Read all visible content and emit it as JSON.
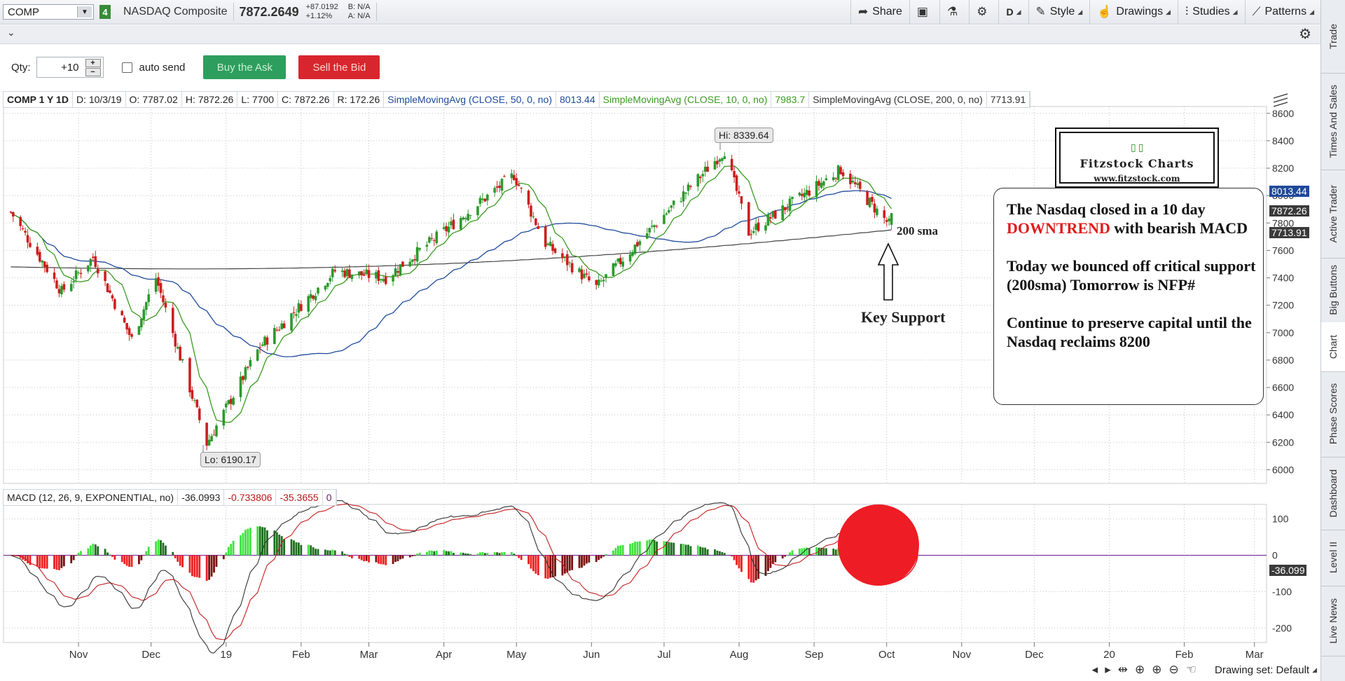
{
  "toolbar": {
    "symbol": "COMP",
    "link_badge": "4",
    "name": "NASDAQ Composite",
    "price": "7872.2649",
    "change_abs": "+87.0192",
    "change_pct": "+1.12%",
    "bid": "B: N/A",
    "ask": "A: N/A",
    "share_label": "Share",
    "timeframe_label": "D",
    "style_label": "Style",
    "drawings_label": "Drawings",
    "studies_label": "Studies",
    "patterns_label": "Patterns"
  },
  "order": {
    "qty_label": "Qty:",
    "qty_value": "+10",
    "auto_send_label": "auto send",
    "buy_label": "Buy the Ask",
    "sell_label": "Sell the Bid"
  },
  "study_header": {
    "symbol_period": "COMP 1 Y 1D",
    "date": "D: 10/3/19",
    "open": "O: 7787.02",
    "high": "H: 7872.26",
    "low": "L: 7700",
    "close": "C: 7872.26",
    "range": "R: 172.26",
    "sma50_label": "SimpleMovingAvg (CLOSE, 50, 0, no)",
    "sma50_value": "8013.44",
    "sma10_label": "SimpleMovingAvg (CLOSE, 10, 0, no)",
    "sma10_value": "7983.7",
    "sma200_label": "SimpleMovingAvg (CLOSE, 200, 0, no)",
    "sma200_value": "7713.91"
  },
  "macd_header": {
    "label": "MACD (12, 26, 9, EXPONENTIAL, no)",
    "value": "-36.0993",
    "avg": "-0.733806",
    "diff": "-35.3655",
    "zero": "0"
  },
  "annotations": {
    "hi_label": "Hi: 8339.64",
    "lo_label": "Lo: 6190.17",
    "sma_tag": "200 sma",
    "key_support": "Key Support",
    "logo_title": "Fitzstock Charts",
    "logo_url": "www.fitzstock.com",
    "note_line1_pre": "The Nasdaq closed in a 10 day",
    "note_line1_red": "DOWNTREND",
    "note_line1_post": " with bearish MACD",
    "note_line2": "Today we bounced off critical support (200sma) Tomorrow is NFP#",
    "note_line3": "Continue to preserve capital until the Nasdaq reclaims 8200"
  },
  "price_tags": {
    "sma50": "8013.44",
    "last": "7872.26",
    "sma200": "7713.91",
    "macd": "-36.099"
  },
  "colors": {
    "up": "#2b9a2b",
    "down": "#cc1f1f",
    "sma50": "#1f4a9a",
    "sma10": "#3b9a22",
    "sma200": "#444444",
    "highlight": "#ee1c25"
  },
  "side_tabs": [
    "Trade",
    "Times And Sales",
    "Active Trader",
    "Big Buttons",
    "Chart",
    "Phase Scores",
    "Dashboard",
    "Level II",
    "Live News"
  ],
  "bottom": {
    "drawing_set": "Drawing set: Default"
  },
  "chart_data": {
    "type": "candlestick",
    "symbol": "COMP",
    "period": "1 Y 1D",
    "y_ticks": [
      8600,
      8400,
      8200,
      8000,
      7800,
      7600,
      7400,
      7200,
      7000,
      6800,
      6600,
      6400,
      6200,
      6000
    ],
    "ylim": [
      5900,
      8650
    ],
    "x_ticks": [
      "Nov",
      "Dec",
      "19",
      "Feb",
      "Mar",
      "Apr",
      "May",
      "Jun",
      "Jul",
      "Aug",
      "Sep",
      "Oct",
      "Nov",
      "Dec",
      "20",
      "Feb",
      "Mar"
    ],
    "close_path_monthly": [
      {
        "date": "2018-10-04",
        "close": 7880
      },
      {
        "date": "2018-10-25",
        "close": 7300
      },
      {
        "date": "2018-11-07",
        "close": 7550
      },
      {
        "date": "2018-11-23",
        "close": 6950
      },
      {
        "date": "2018-12-03",
        "close": 7400
      },
      {
        "date": "2018-12-24",
        "close": 6190
      },
      {
        "date": "2019-01-15",
        "close": 6900
      },
      {
        "date": "2019-02-15",
        "close": 7450
      },
      {
        "date": "2019-03-08",
        "close": 7400
      },
      {
        "date": "2019-04-30",
        "close": 8150
      },
      {
        "date": "2019-05-13",
        "close": 7650
      },
      {
        "date": "2019-06-03",
        "close": 7330
      },
      {
        "date": "2019-07-26",
        "close": 8330
      },
      {
        "date": "2019-08-05",
        "close": 7730
      },
      {
        "date": "2019-09-12",
        "close": 8190
      },
      {
        "date": "2019-10-02",
        "close": 7790
      },
      {
        "date": "2019-10-03",
        "close": 7872
      }
    ],
    "hi": 8339.64,
    "lo": 6190.17,
    "sma50_last": 8013.44,
    "sma10_last": 7983.7,
    "sma200_last": 7713.91,
    "macd": {
      "y_ticks": [
        100,
        0,
        -100,
        -200
      ],
      "ylim": [
        -240,
        140
      ],
      "macd_last": -36.0993,
      "signal_last": -0.733806,
      "diff_last": -35.3655
    }
  }
}
